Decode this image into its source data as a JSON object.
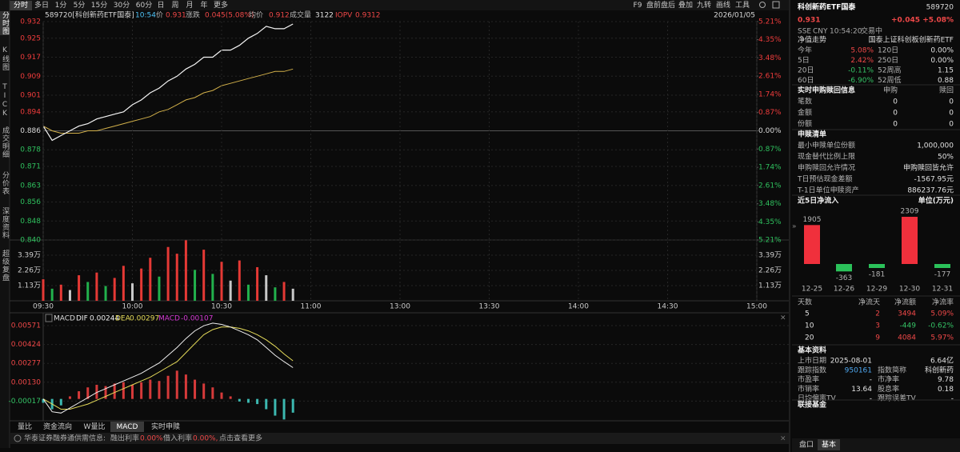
{
  "sidebar": [
    "分时图",
    "K线图",
    "TICK",
    "成交明细",
    "分价表",
    "深度资料",
    "超级复盘"
  ],
  "toolbar": {
    "periods": [
      "分时",
      "多日",
      "1分",
      "5分",
      "15分",
      "30分",
      "60分",
      "日",
      "周",
      "月",
      "年",
      "更多"
    ],
    "tools": [
      "F9",
      "盘前盘后",
      "叠加",
      "九转",
      "画线",
      "工具"
    ]
  },
  "quote_line": {
    "code": "589720[科创新药ETF国泰]",
    "time": "10:54",
    "price_label": "价",
    "price": 0.931,
    "change_label": "涨跌",
    "change": "0.045(5.08%)",
    "avg_label": "均价",
    "avg": 0.912,
    "volume_label": "成交量",
    "volume": 3122,
    "iopv_label": "IOPV",
    "iopv": 0.9312,
    "date": "2026/01/05"
  },
  "chart_data": [
    {
      "type": "line",
      "x": [
        "09:30",
        "09:33",
        "09:36",
        "09:39",
        "09:42",
        "09:45",
        "09:48",
        "09:51",
        "09:54",
        "09:57",
        "10:00",
        "10:03",
        "10:06",
        "10:09",
        "10:12",
        "10:15",
        "10:18",
        "10:21",
        "10:24",
        "10:27",
        "10:30",
        "10:33",
        "10:36",
        "10:39",
        "10:42",
        "10:45",
        "10:48",
        "10:51",
        "10:54"
      ],
      "xlim": [
        "09:30",
        "15:00"
      ],
      "series": [
        {
          "color": "#f4f4f4",
          "values": [
            0.888,
            0.882,
            0.884,
            0.886,
            0.888,
            0.889,
            0.891,
            0.892,
            0.893,
            0.894,
            0.897,
            0.899,
            0.902,
            0.904,
            0.907,
            0.909,
            0.912,
            0.914,
            0.917,
            0.917,
            0.92,
            0.92,
            0.922,
            0.925,
            0.927,
            0.93,
            0.929,
            0.929,
            0.931
          ]
        },
        {
          "color": "#d2b04a",
          "values": [
            0.888,
            0.886,
            0.885,
            0.885,
            0.885,
            0.886,
            0.886,
            0.887,
            0.888,
            0.889,
            0.89,
            0.891,
            0.892,
            0.894,
            0.895,
            0.897,
            0.899,
            0.9,
            0.902,
            0.903,
            0.905,
            0.906,
            0.907,
            0.908,
            0.909,
            0.91,
            0.911,
            0.911,
            0.912
          ]
        }
      ],
      "ylim": [
        0.84,
        0.932
      ],
      "yticks": [
        0.932,
        0.925,
        0.917,
        0.909,
        0.901,
        0.894,
        0.886,
        0.878,
        0.871,
        0.863,
        0.856,
        0.848,
        {
          "value": 0.84,
          "label": "0.840"
        }
      ],
      "y2lim": [
        -5.21,
        5.21
      ],
      "y2ticks": [
        {
          "value": 5.21,
          "label": "5.21%"
        },
        {
          "value": 4.35,
          "label": "4.35%"
        },
        {
          "value": 3.48,
          "label": "3.48%"
        },
        {
          "value": 2.61,
          "label": "2.61%"
        },
        {
          "value": 1.74,
          "label": "1.74%"
        },
        {
          "value": 0.87,
          "label": "0.87%"
        },
        {
          "value": 0,
          "label": "0.00%"
        },
        {
          "value": -0.87,
          "label": "0.87%"
        },
        {
          "value": -1.74,
          "label": "1.74%"
        },
        {
          "value": -2.61,
          "label": "2.61%"
        },
        {
          "value": -3.48,
          "label": "3.48%"
        },
        {
          "value": -4.35,
          "label": "4.35%"
        },
        {
          "value": -5.21,
          "label": "5.21%"
        }
      ],
      "up_color": "#f03c3c",
      "down_color": "#2fc15e",
      "grid": true
    },
    {
      "type": "bar",
      "x": [
        "09:30",
        "09:33",
        "09:36",
        "09:39",
        "09:42",
        "09:45",
        "09:48",
        "09:51",
        "09:54",
        "09:57",
        "10:00",
        "10:03",
        "10:06",
        "10:09",
        "10:12",
        "10:15",
        "10:18",
        "10:21",
        "10:24",
        "10:27",
        "10:30",
        "10:33",
        "10:36",
        "10:39",
        "10:42",
        "10:45",
        "10:48",
        "10:51",
        "10:54"
      ],
      "xlim": [
        "09:30",
        "15:00"
      ],
      "values": [
        1.6,
        0.9,
        1.2,
        0.8,
        1.9,
        1.4,
        2.1,
        1.1,
        1.7,
        2.6,
        1.3,
        2.4,
        3.2,
        1.8,
        4.0,
        3.5,
        4.5,
        2.3,
        3.8,
        2.0,
        2.9,
        1.5,
        3.0,
        1.2,
        2.5,
        1.9,
        1.0,
        1.4,
        0.9
      ],
      "colors": [
        "#e53935",
        "#22b14c",
        "#e53935",
        "#c8c8c8",
        "#e53935",
        "#22b14c",
        "#e53935",
        "#22b14c",
        "#e53935",
        "#e53935",
        "#c8c8c8",
        "#e53935",
        "#e53935",
        "#22b14c",
        "#e53935",
        "#e53935",
        "#e53935",
        "#22b14c",
        "#e53935",
        "#22b14c",
        "#e53935",
        "#c8c8c8",
        "#e53935",
        "#22b14c",
        "#e53935",
        "#c8c8c8",
        "#22b14c",
        "#e53935",
        "#c8c8c8"
      ],
      "ylim": [
        0,
        4.52
      ],
      "yticks": [
        {
          "value": 3.39,
          "label": "3.39万"
        },
        {
          "value": 2.26,
          "label": "2.26万"
        },
        {
          "value": 1.13,
          "label": "1.13万"
        }
      ],
      "xticks": [
        "09:30",
        "10:00",
        "10:30",
        "11:00",
        "13:00",
        "13:30",
        "14:00",
        "14:30",
        "15:00"
      ],
      "grid": true
    },
    {
      "type": "macd",
      "indicator": "MACD",
      "x": [
        "09:30",
        "09:33",
        "09:36",
        "09:39",
        "09:42",
        "09:45",
        "09:48",
        "09:51",
        "09:54",
        "09:57",
        "10:00",
        "10:03",
        "10:06",
        "10:09",
        "10:12",
        "10:15",
        "10:18",
        "10:21",
        "10:24",
        "10:27",
        "10:30",
        "10:33",
        "10:36",
        "10:39",
        "10:42",
        "10:45",
        "10:48",
        "10:51",
        "10:54"
      ],
      "xlim": [
        "09:30",
        "15:00"
      ],
      "series": [
        {
          "name": "DIF",
          "color": "#f0f0f0",
          "values": [
            0,
            -0.001,
            -0.0011,
            -0.0007,
            -0.0003,
            0.0001,
            0.0005,
            0.0008,
            0.0011,
            0.0014,
            0.0017,
            0.002,
            0.0024,
            0.0028,
            0.0034,
            0.004,
            0.0047,
            0.0053,
            0.0057,
            0.0059,
            0.0058,
            0.0056,
            0.0053,
            0.005,
            0.0046,
            0.004,
            0.0034,
            0.0029,
            0.00244
          ]
        },
        {
          "name": "DEA",
          "color": "#e6dc5a",
          "values": [
            0,
            -0.0004,
            -0.0008,
            -0.0008,
            -0.0006,
            -0.0004,
            -0.0001,
            0.0002,
            0.0005,
            0.0008,
            0.0011,
            0.0014,
            0.0017,
            0.0021,
            0.0025,
            0.0029,
            0.0036,
            0.0043,
            0.005,
            0.0054,
            0.0056,
            0.0056,
            0.0055,
            0.0053,
            0.005,
            0.0046,
            0.0041,
            0.0035,
            0.00297
          ]
        },
        {
          "name": "MACD",
          "color": "#d43ad4",
          "up_color": "#d63a3a",
          "down_color": "#3cb8b0",
          "values": [
            -0.0003,
            -0.0008,
            -0.0005,
            0.0002,
            0.0006,
            0.0009,
            0.0011,
            0.001,
            0.0012,
            0.0013,
            0.0011,
            0.0013,
            0.0015,
            0.0014,
            0.0018,
            0.0022,
            0.0019,
            0.0015,
            0.0012,
            0.0009,
            0.0005,
            0.0002,
            -0.0002,
            -0.0003,
            -0.0004,
            -0.0008,
            -0.0013,
            -0.0016,
            -0.00107
          ]
        }
      ],
      "ylim": [
        -0.00164,
        0.00627
      ],
      "yticks": [
        0.00571,
        0.00424,
        0.00277,
        {
          "value": 0.0013,
          "label": "0.00130"
        },
        -0.00017
      ],
      "grid": true
    },
    {
      "type": "bar",
      "title": "近5日净流入",
      "unit": "单位(万元)",
      "categories": [
        "12-25",
        "12-26",
        "12-29",
        "12-30",
        "12-31"
      ],
      "values": [
        1905,
        -363,
        -181,
        2309,
        -177
      ],
      "up_color": "#f0303c",
      "down_color": "#2bc15a"
    }
  ],
  "bottom_tabs": [
    "量比",
    "资金流向",
    "W量比",
    "MACD",
    "实时申赎"
  ],
  "notice": {
    "source": "华泰证券融券通供需信息:",
    "lend_label": "融出利率",
    "lend_rate": "0.00%",
    "borrow_label": "借入利率",
    "borrow_rate": "0.00%,",
    "more": "点击查看更多"
  },
  "panel": {
    "name": "科创新药ETF国泰",
    "code": "589720",
    "price": 0.931,
    "change": "+0.045",
    "change_pct": "+5.08%",
    "market": "SSE",
    "currency": "CNY",
    "time": "10:54:20",
    "status": "交易中",
    "nav": {
      "title": "净值走势",
      "fund": "国泰上证科创板创新药ETF",
      "rows": [
        [
          "今年",
          "5.08%",
          "120日",
          "0.00%"
        ],
        [
          "5日",
          "2.42%",
          "250日",
          "0.00%"
        ],
        [
          "20日",
          "-0.11%",
          "52周高",
          "1.15"
        ],
        [
          "60日",
          "-6.90%",
          "52周低",
          "0.88"
        ]
      ]
    },
    "realtime": {
      "title": "实时申购赎回信息",
      "columns": [
        "申购",
        "赎回"
      ],
      "rows": [
        [
          "笔数",
          "0",
          "0"
        ],
        [
          "金额",
          "0",
          "0"
        ],
        [
          "份额",
          "0",
          "0"
        ]
      ]
    },
    "list": {
      "title": "申赎清单",
      "rows": [
        [
          "最小申赎单位份额",
          "1,000,000"
        ],
        [
          "现金替代比例上限",
          "50%"
        ],
        [
          "申购赎回允许情况",
          "申购赎回皆允许"
        ],
        [
          "T日预估现金差额",
          "-1567.95元"
        ],
        [
          "T-1日单位申赎资产",
          "886237.76元"
        ]
      ]
    },
    "flow_table": {
      "columns": [
        "天数",
        "净流天",
        "净流额",
        "净流率"
      ],
      "rows": [
        [
          "5",
          "2",
          "3494",
          "5.09%"
        ],
        [
          "10",
          "3",
          "-449",
          "-0.62%"
        ],
        [
          "20",
          "9",
          "4084",
          "5.97%"
        ]
      ]
    },
    "basic": {
      "title": "基本资料",
      "rows": [
        [
          "上市日期",
          "2025-08-01",
          "6.64亿"
        ],
        [
          "跟踪指数",
          "950161",
          "指数简称",
          "科创新药"
        ],
        [
          "市盈率",
          "-",
          "市净率",
          "9.78"
        ],
        [
          "市销率",
          "13.64",
          "股息率",
          "0.18"
        ],
        [
          "日均偏离TV",
          "-",
          "跟踪误差TV",
          "-"
        ]
      ]
    },
    "linked_fund": "联接基金",
    "tabs": [
      "盘口",
      "基本"
    ]
  }
}
